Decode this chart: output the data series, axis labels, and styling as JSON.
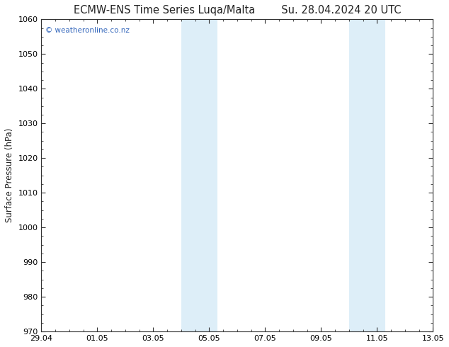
{
  "title_left": "ECMW-ENS Time Series Luqa/Malta",
  "title_right": "Su. 28.04.2024 20 UTC",
  "ylabel": "Surface Pressure (hPa)",
  "ylim": [
    970,
    1060
  ],
  "yticks": [
    970,
    980,
    990,
    1000,
    1010,
    1020,
    1030,
    1040,
    1050,
    1060
  ],
  "xtick_labels": [
    "29.04",
    "01.05",
    "03.05",
    "05.05",
    "07.05",
    "09.05",
    "11.05",
    "13.05"
  ],
  "xtick_positions": [
    0,
    2,
    4,
    6,
    8,
    10,
    12,
    14
  ],
  "xlim": [
    0,
    14
  ],
  "shaded_bands": [
    {
      "x_start": 5.0,
      "x_end": 5.7,
      "color": "#ddeef8"
    },
    {
      "x_start": 5.7,
      "x_end": 6.3,
      "color": "#ddeef8"
    },
    {
      "x_start": 11.0,
      "x_end": 11.7,
      "color": "#ddeef8"
    },
    {
      "x_start": 11.7,
      "x_end": 12.3,
      "color": "#ddeef8"
    }
  ],
  "watermark": "© weatheronline.co.nz",
  "watermark_color": "#3366bb",
  "background_color": "#ffffff",
  "plot_bg_color": "#ffffff",
  "title_color": "#222222",
  "title_fontsize": 10.5,
  "tick_fontsize": 8,
  "ylabel_fontsize": 8.5,
  "minor_tick_count": 3
}
